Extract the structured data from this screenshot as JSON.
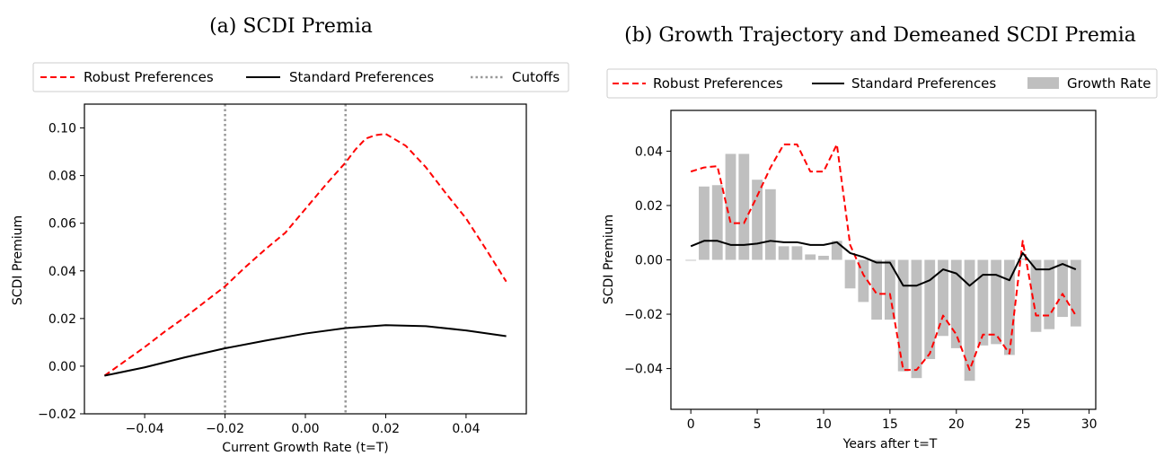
{
  "chart_data": [
    {
      "type": "line",
      "title": "(a) SCDI Premia",
      "xlabel": "Current Growth Rate (t=T)",
      "ylabel": "SCDI Premium",
      "xlim": [
        -0.055,
        0.055
      ],
      "ylim": [
        -0.02,
        0.11
      ],
      "xticks": [
        -0.04,
        -0.02,
        0.0,
        0.02,
        0.04
      ],
      "xtick_labels": [
        "−0.04",
        "−0.02",
        "0.00",
        "0.02",
        "0.04"
      ],
      "yticks": [
        -0.02,
        0.0,
        0.02,
        0.04,
        0.06,
        0.08,
        0.1
      ],
      "ytick_labels": [
        "−0.02",
        "0.00",
        "0.02",
        "0.04",
        "0.06",
        "0.08",
        "0.10"
      ],
      "legend_position": "top",
      "series": [
        {
          "name": "Robust Preferences",
          "style": "dashed",
          "color": "#ff0000",
          "x": [
            -0.05,
            -0.045,
            -0.04,
            -0.035,
            -0.03,
            -0.025,
            -0.02,
            -0.015,
            -0.01,
            -0.005,
            0.0,
            0.005,
            0.01,
            0.0125,
            0.015,
            0.0175,
            0.02,
            0.025,
            0.03,
            0.035,
            0.04,
            0.045,
            0.05
          ],
          "y": [
            -0.004,
            0.002,
            0.008,
            0.0145,
            0.0205,
            0.027,
            0.0335,
            0.0415,
            0.049,
            0.056,
            0.066,
            0.076,
            0.0855,
            0.091,
            0.0955,
            0.097,
            0.0975,
            0.0925,
            0.0835,
            0.0725,
            0.062,
            0.049,
            0.0355
          ]
        },
        {
          "name": "Standard Preferences",
          "style": "solid",
          "color": "#000000",
          "x": [
            -0.05,
            -0.04,
            -0.03,
            -0.02,
            -0.01,
            0.0,
            0.01,
            0.02,
            0.03,
            0.04,
            0.05
          ],
          "y": [
            -0.004,
            -0.0005,
            0.0037,
            0.0075,
            0.0107,
            0.0137,
            0.016,
            0.0172,
            0.0168,
            0.015,
            0.0126
          ]
        }
      ],
      "cutoffs": {
        "name": "Cutoffs",
        "style": "dotted",
        "color": "#999999",
        "x": [
          -0.02,
          0.01
        ]
      }
    },
    {
      "type": "bar+line",
      "title": "(b) Growth Trajectory and Demeaned SCDI Premia",
      "xlabel": "Years after t=T",
      "ylabel": "SCDI Premium",
      "xlim": [
        -1.5,
        30.5
      ],
      "ylim": [
        -0.055,
        0.055
      ],
      "xticks": [
        0,
        5,
        10,
        15,
        20,
        25,
        30
      ],
      "xtick_labels": [
        "0",
        "5",
        "10",
        "15",
        "20",
        "25",
        "30"
      ],
      "yticks": [
        -0.04,
        -0.02,
        0.0,
        0.02,
        0.04
      ],
      "ytick_labels": [
        "−0.04",
        "−0.02",
        "0.00",
        "0.02",
        "0.04"
      ],
      "legend_position": "top",
      "bars": {
        "name": "Growth Rate",
        "color": "#bfbfbf",
        "x": [
          0,
          1,
          2,
          3,
          4,
          5,
          6,
          7,
          8,
          9,
          10,
          11,
          12,
          13,
          14,
          15,
          16,
          17,
          18,
          19,
          20,
          21,
          22,
          23,
          24,
          25,
          26,
          27,
          28,
          29
        ],
        "values": [
          -0.0003,
          0.027,
          0.0275,
          0.039,
          0.039,
          0.0295,
          0.026,
          0.005,
          0.005,
          0.002,
          0.0015,
          0.007,
          -0.0105,
          -0.0155,
          -0.022,
          -0.022,
          -0.041,
          -0.0435,
          -0.0365,
          -0.028,
          -0.0325,
          -0.0445,
          -0.0315,
          -0.031,
          -0.035,
          0.0005,
          -0.0265,
          -0.0255,
          -0.021,
          -0.0245
        ]
      },
      "series": [
        {
          "name": "Robust Preferences",
          "style": "dashed",
          "color": "#ff0000",
          "x": [
            0,
            1,
            2,
            3,
            4,
            5,
            6,
            7,
            8,
            9,
            10,
            11,
            12,
            13,
            14,
            15,
            16,
            17,
            18,
            19,
            20,
            21,
            22,
            23,
            24,
            25,
            26,
            27,
            28,
            29
          ],
          "y": [
            0.0325,
            0.034,
            0.0345,
            0.0135,
            0.0135,
            0.0235,
            0.034,
            0.0425,
            0.0425,
            0.0325,
            0.0325,
            0.0425,
            0.0055,
            -0.0055,
            -0.0125,
            -0.0125,
            -0.0405,
            -0.0405,
            -0.0345,
            -0.0205,
            -0.0275,
            -0.0405,
            -0.0275,
            -0.0275,
            -0.0345,
            0.007,
            -0.0205,
            -0.0205,
            -0.0125,
            -0.0205
          ]
        },
        {
          "name": "Standard Preferences",
          "style": "solid",
          "color": "#000000",
          "x": [
            0,
            1,
            2,
            3,
            4,
            5,
            6,
            7,
            8,
            9,
            10,
            11,
            12,
            13,
            14,
            15,
            16,
            17,
            18,
            19,
            20,
            21,
            22,
            23,
            24,
            25,
            26,
            27,
            28,
            29
          ],
          "y": [
            0.005,
            0.007,
            0.007,
            0.0055,
            0.0055,
            0.006,
            0.007,
            0.0065,
            0.0065,
            0.0055,
            0.0055,
            0.0065,
            0.0025,
            0.001,
            -0.001,
            -0.001,
            -0.0095,
            -0.0095,
            -0.0075,
            -0.0035,
            -0.005,
            -0.0095,
            -0.0055,
            -0.0055,
            -0.0075,
            0.0025,
            -0.0035,
            -0.0035,
            -0.0015,
            -0.0035
          ]
        }
      ]
    }
  ]
}
